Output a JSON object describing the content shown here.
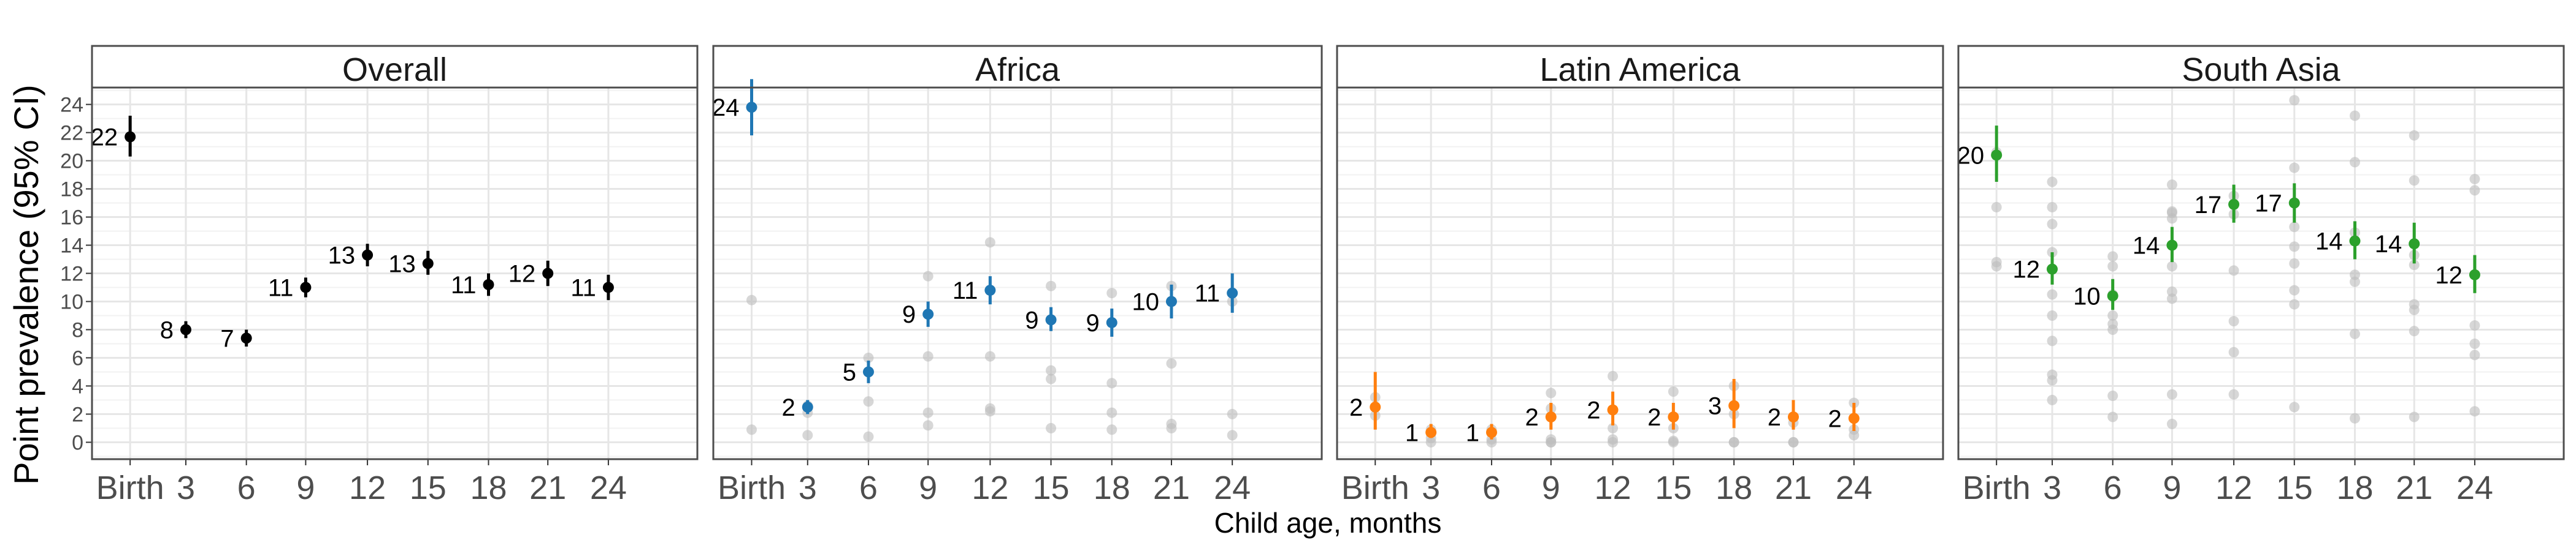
{
  "chart_data": {
    "type": "scatter",
    "ylabel": "Point prevalence (95% CI)",
    "xlabel": "Child age, months",
    "x_categories": [
      "Birth",
      "3",
      "6",
      "9",
      "12",
      "15",
      "18",
      "21",
      "24"
    ],
    "yticks": [
      0,
      2,
      4,
      6,
      8,
      10,
      12,
      14,
      16,
      18,
      20,
      22,
      24
    ],
    "ylim": [
      -1.2,
      25.2
    ],
    "grid": true,
    "background_point_color": "#bdbdbd",
    "panels": [
      {
        "title": "Overall",
        "color": "#000000",
        "estimates": [
          21.7,
          8.0,
          7.4,
          11.0,
          13.3,
          12.7,
          11.2,
          12.0,
          11.0
        ],
        "ci_low": [
          20.3,
          7.4,
          6.8,
          10.3,
          12.5,
          11.9,
          10.4,
          11.1,
          10.1
        ],
        "ci_high": [
          23.2,
          8.6,
          8.0,
          11.7,
          14.1,
          13.6,
          12.0,
          12.9,
          11.9
        ],
        "labels": [
          "22",
          "8",
          "7",
          "11",
          "13",
          "13",
          "11",
          "12",
          "11"
        ],
        "background": []
      },
      {
        "title": "Africa",
        "color": "#1f77b4",
        "estimates": [
          23.8,
          2.5,
          5.0,
          9.1,
          10.8,
          8.7,
          8.5,
          10.0,
          10.6
        ],
        "ci_low": [
          21.8,
          2.0,
          4.2,
          8.2,
          9.8,
          7.9,
          7.5,
          8.8,
          9.2
        ],
        "ci_high": [
          25.8,
          3.0,
          5.8,
          10.0,
          11.8,
          9.6,
          9.5,
          11.2,
          12.0
        ],
        "labels": [
          "24",
          "2",
          "5",
          "9",
          "11",
          "9",
          "9",
          "10",
          "11"
        ],
        "background": [
          [
            0,
            10.1
          ],
          [
            0,
            0.9
          ],
          [
            1,
            2.6
          ],
          [
            1,
            0.5
          ],
          [
            1,
            2.1
          ],
          [
            2,
            6.0
          ],
          [
            2,
            2.9
          ],
          [
            2,
            0.4
          ],
          [
            3,
            11.8
          ],
          [
            3,
            6.1
          ],
          [
            3,
            2.1
          ],
          [
            3,
            1.2
          ],
          [
            4,
            14.2
          ],
          [
            4,
            6.1
          ],
          [
            4,
            2.4
          ],
          [
            4,
            2.2
          ],
          [
            5,
            11.1
          ],
          [
            5,
            5.1
          ],
          [
            5,
            4.5
          ],
          [
            5,
            1.0
          ],
          [
            6,
            10.6
          ],
          [
            6,
            4.2
          ],
          [
            6,
            2.1
          ],
          [
            6,
            0.9
          ],
          [
            7,
            11.1
          ],
          [
            7,
            5.6
          ],
          [
            7,
            1.3
          ],
          [
            7,
            1.0
          ],
          [
            8,
            10.0
          ],
          [
            8,
            2.0
          ],
          [
            8,
            0.5
          ]
        ]
      },
      {
        "title": "Latin America",
        "color": "#ff7f0e",
        "estimates": [
          2.5,
          0.7,
          0.7,
          1.8,
          2.3,
          1.8,
          2.6,
          1.8,
          1.7
        ],
        "ci_low": [
          0.9,
          0.3,
          0.2,
          0.9,
          1.2,
          0.9,
          1.0,
          0.9,
          0.8
        ],
        "ci_high": [
          5.0,
          1.3,
          1.3,
          2.8,
          3.6,
          2.8,
          4.5,
          3.0,
          2.8
        ],
        "labels": [
          "2",
          "1",
          "1",
          "2",
          "2",
          "2",
          "3",
          "2",
          "2"
        ],
        "background": [
          [
            0,
            3.2
          ],
          [
            0,
            1.9
          ],
          [
            1,
            0.3
          ],
          [
            1,
            0.0
          ],
          [
            1,
            0.9
          ],
          [
            2,
            0.9
          ],
          [
            2,
            0.2
          ],
          [
            2,
            0.0
          ],
          [
            3,
            3.5
          ],
          [
            3,
            0.2
          ],
          [
            3,
            0.0
          ],
          [
            3,
            0.0
          ],
          [
            3,
            2.4
          ],
          [
            4,
            4.7
          ],
          [
            4,
            1.0
          ],
          [
            4,
            0.0
          ],
          [
            4,
            0.2
          ],
          [
            5,
            3.6
          ],
          [
            5,
            1.0
          ],
          [
            5,
            0.0
          ],
          [
            5,
            0.1
          ],
          [
            6,
            4.0
          ],
          [
            6,
            2.0
          ],
          [
            6,
            0.0
          ],
          [
            6,
            0.0
          ],
          [
            7,
            1.4
          ],
          [
            7,
            0.0
          ],
          [
            7,
            0.0
          ],
          [
            8,
            2.8
          ],
          [
            8,
            0.9
          ],
          [
            8,
            0.5
          ]
        ]
      },
      {
        "title": "South Asia",
        "color": "#2ca02c",
        "estimates": [
          20.4,
          12.3,
          10.4,
          14.0,
          16.9,
          17.0,
          14.3,
          14.1,
          11.9
        ],
        "ci_low": [
          18.5,
          11.2,
          9.4,
          12.8,
          15.6,
          15.6,
          13.0,
          12.7,
          10.6
        ],
        "ci_high": [
          22.5,
          13.5,
          11.6,
          15.3,
          18.3,
          18.4,
          15.7,
          15.6,
          13.3
        ],
        "labels": [
          "20",
          "12",
          "10",
          "14",
          "17",
          "17",
          "14",
          "14",
          "12"
        ],
        "background": [
          [
            0,
            20.6
          ],
          [
            0,
            16.7
          ],
          [
            0,
            12.8
          ],
          [
            0,
            12.5
          ],
          [
            1,
            18.5
          ],
          [
            1,
            16.7
          ],
          [
            1,
            15.5
          ],
          [
            1,
            13.5
          ],
          [
            1,
            10.5
          ],
          [
            1,
            9.0
          ],
          [
            1,
            7.2
          ],
          [
            1,
            4.8
          ],
          [
            1,
            4.4
          ],
          [
            1,
            3.0
          ],
          [
            2,
            13.2
          ],
          [
            2,
            12.5
          ],
          [
            2,
            10.5
          ],
          [
            2,
            9.0
          ],
          [
            2,
            8.4
          ],
          [
            2,
            8.0
          ],
          [
            2,
            3.3
          ],
          [
            2,
            1.8
          ],
          [
            3,
            18.3
          ],
          [
            3,
            16.4
          ],
          [
            3,
            16.3
          ],
          [
            3,
            15.9
          ],
          [
            3,
            12.5
          ],
          [
            3,
            10.7
          ],
          [
            3,
            10.2
          ],
          [
            3,
            3.4
          ],
          [
            3,
            1.3
          ],
          [
            4,
            17.5
          ],
          [
            4,
            16.2
          ],
          [
            4,
            12.2
          ],
          [
            4,
            8.6
          ],
          [
            4,
            6.4
          ],
          [
            4,
            3.4
          ],
          [
            5,
            24.3
          ],
          [
            5,
            19.5
          ],
          [
            5,
            15.3
          ],
          [
            5,
            13.9
          ],
          [
            5,
            12.7
          ],
          [
            5,
            10.8
          ],
          [
            5,
            9.8
          ],
          [
            5,
            2.5
          ],
          [
            6,
            23.2
          ],
          [
            6,
            19.9
          ],
          [
            6,
            14.9
          ],
          [
            6,
            11.9
          ],
          [
            6,
            11.4
          ],
          [
            6,
            7.7
          ],
          [
            6,
            1.7
          ],
          [
            7,
            21.8
          ],
          [
            7,
            18.6
          ],
          [
            7,
            13.3
          ],
          [
            7,
            12.6
          ],
          [
            7,
            9.8
          ],
          [
            7,
            9.4
          ],
          [
            7,
            7.9
          ],
          [
            7,
            1.8
          ],
          [
            8,
            18.7
          ],
          [
            8,
            17.9
          ],
          [
            8,
            8.3
          ],
          [
            8,
            7.0
          ],
          [
            8,
            6.2
          ],
          [
            8,
            2.2
          ]
        ]
      }
    ]
  }
}
